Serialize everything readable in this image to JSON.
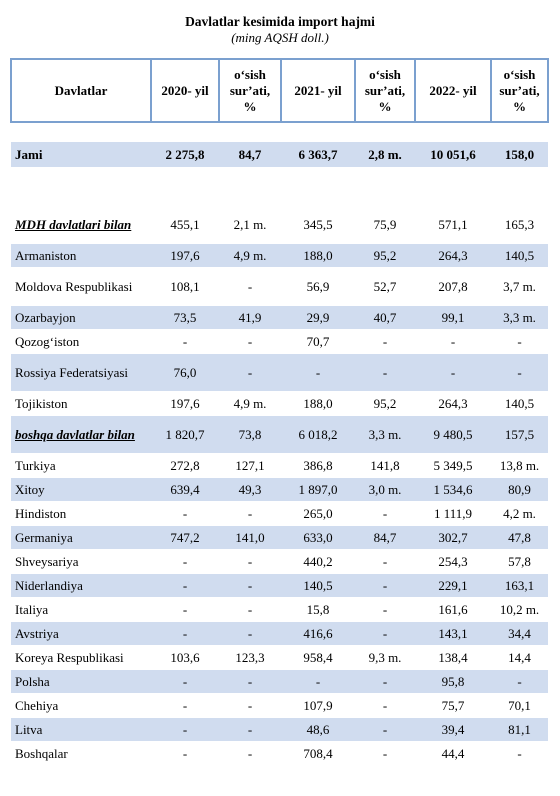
{
  "title": "Davlatlar kesimida import hajmi",
  "subtitle": "(ming AQSH doll.)",
  "headers": [
    "Davlatlar",
    "2020- yil",
    "o‘sish sur’ati, %",
    "2021- yil",
    "o‘sish sur’ati, %",
    "2022- yil",
    "o‘sish sur’ati, %"
  ],
  "total": [
    "Jami",
    "2 275,8",
    "84,7",
    "6 363,7",
    "2,8 m.",
    "10 051,6",
    "158,0"
  ],
  "rows": [
    [
      "MDH davlatlari bilan",
      "455,1",
      "2,1 m.",
      "345,5",
      "75,9",
      "571,1",
      "165,3"
    ],
    [
      "Armaniston",
      "197,6",
      "4,9 m.",
      "188,0",
      "95,2",
      "264,3",
      "140,5"
    ],
    [
      "Moldova Respublikasi",
      "108,1",
      "-",
      "56,9",
      "52,7",
      "207,8",
      "3,7 m."
    ],
    [
      "Ozarbayjon",
      "73,5",
      "41,9",
      "29,9",
      "40,7",
      "99,1",
      "3,3 m."
    ],
    [
      "Qozog‘iston",
      "-",
      "-",
      "70,7",
      "-",
      "-",
      "-"
    ],
    [
      "Rossiya Federatsiyasi",
      "76,0",
      "-",
      "-",
      "-",
      "-",
      "-"
    ],
    [
      "Tojikiston",
      "197,6",
      "4,9 m.",
      "188,0",
      "95,2",
      "264,3",
      "140,5"
    ],
    [
      "boshqa davlatlar bilan",
      "1 820,7",
      "73,8",
      "6 018,2",
      "3,3 m.",
      "9 480,5",
      "157,5"
    ],
    [
      "Turkiya",
      "272,8",
      "127,1",
      "386,8",
      "141,8",
      "5 349,5",
      "13,8 m."
    ],
    [
      "Xitoy",
      "639,4",
      "49,3",
      "1 897,0",
      "3,0 m.",
      "1 534,6",
      "80,9"
    ],
    [
      "Hindiston",
      "-",
      "-",
      "265,0",
      "-",
      "1 111,9",
      "4,2 m."
    ],
    [
      "Germaniya",
      "747,2",
      "141,0",
      "633,0",
      "84,7",
      "302,7",
      "47,8"
    ],
    [
      "Shveysariya",
      "-",
      "-",
      "440,2",
      "-",
      "254,3",
      "57,8"
    ],
    [
      "Niderlandiya",
      "-",
      "-",
      "140,5",
      "-",
      "229,1",
      "163,1"
    ],
    [
      "Italiya",
      "-",
      "-",
      "15,8",
      "-",
      "161,6",
      "10,2 m."
    ],
    [
      "Avstriya",
      "-",
      "-",
      "416,6",
      "-",
      "143,1",
      "34,4"
    ],
    [
      "Koreya Respublikasi",
      "103,6",
      "123,3",
      "958,4",
      "9,3 m.",
      "138,4",
      "14,4"
    ],
    [
      "Polsha",
      "-",
      "-",
      "-",
      "-",
      "95,8",
      "-"
    ],
    [
      "Chehiya",
      "-",
      "-",
      "107,9",
      "-",
      "75,7",
      "70,1"
    ],
    [
      "Litva",
      "-",
      "-",
      "48,6",
      "-",
      "39,4",
      "81,1"
    ],
    [
      "Boshqalar",
      "-",
      "-",
      "708,4",
      "-",
      "44,4",
      "-"
    ]
  ]
}
